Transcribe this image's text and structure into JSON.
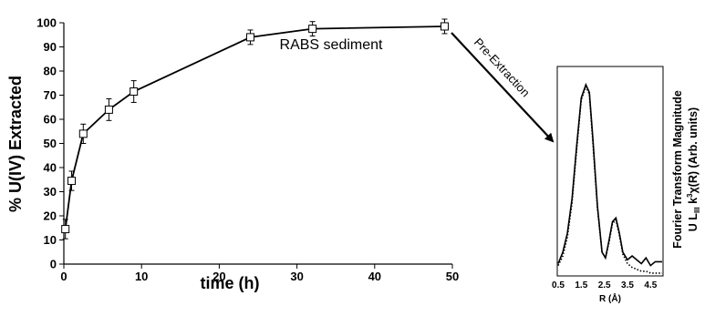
{
  "chart_data": [
    {
      "type": "line",
      "title": "",
      "xlabel": "time (h)",
      "ylabel": "% U(IV) Extracted",
      "xlim": [
        0,
        50
      ],
      "ylim": [
        0,
        100
      ],
      "xticks": [
        "0",
        "10",
        "20",
        "30",
        "40",
        "50"
      ],
      "yticks": [
        "0",
        "10",
        "20",
        "30",
        "40",
        "50",
        "60",
        "70",
        "80",
        "90",
        "100"
      ],
      "grid": false,
      "marker": "open-square",
      "series": [
        {
          "x": [
            0.2,
            1,
            2.5,
            5.8,
            9,
            24,
            32,
            49
          ],
          "y": [
            14.5,
            34.5,
            54,
            64,
            71.5,
            94,
            97.5,
            98.5
          ],
          "error": [
            4,
            4,
            4,
            4.5,
            4.5,
            3,
            3,
            3
          ]
        }
      ],
      "annotations": {
        "sample_label": "RABS sediment",
        "arrow_label": "Pre-Extraction"
      }
    },
    {
      "type": "line",
      "title": "",
      "xlabel": "R (Å)",
      "ylabel_line1": "Fourier Transform Magnitude",
      "ylabel_line2": "U L",
      "ylabel_line2_sub": "III",
      "ylabel_line2_rest": " k",
      "ylabel_line2_sup": "3",
      "ylabel_line2_end": "χ(R) (Arb. units)",
      "xlim": [
        0.5,
        5
      ],
      "xticks": [
        "0.5",
        "1.5",
        "2.5",
        "3.5",
        "4.5"
      ],
      "series": [
        {
          "style": "solid",
          "x": [
            0.5,
            0.7,
            0.9,
            1.1,
            1.3,
            1.5,
            1.7,
            1.85,
            2.0,
            2.2,
            2.4,
            2.55,
            2.7,
            2.85,
            3.0,
            3.15,
            3.3,
            3.5,
            3.7,
            3.9,
            4.1,
            4.3,
            4.5,
            4.7,
            4.9,
            5.0
          ],
          "y": [
            0.06,
            0.12,
            0.22,
            0.4,
            0.68,
            0.93,
            1.0,
            0.96,
            0.72,
            0.36,
            0.12,
            0.09,
            0.18,
            0.28,
            0.3,
            0.22,
            0.12,
            0.08,
            0.1,
            0.08,
            0.06,
            0.09,
            0.05,
            0.07,
            0.07,
            0.07
          ]
        },
        {
          "style": "dotted",
          "x": [
            0.5,
            0.7,
            0.9,
            1.1,
            1.3,
            1.5,
            1.7,
            1.85,
            2.0,
            2.2,
            2.4,
            2.55,
            2.7,
            2.85,
            3.0,
            3.15,
            3.3,
            3.5,
            3.7,
            3.9,
            4.1,
            4.3,
            4.5,
            4.7,
            4.9,
            5.0
          ],
          "y": [
            0.05,
            0.1,
            0.2,
            0.38,
            0.66,
            0.92,
            0.99,
            0.95,
            0.7,
            0.35,
            0.12,
            0.09,
            0.17,
            0.27,
            0.29,
            0.21,
            0.11,
            0.06,
            0.04,
            0.03,
            0.02,
            0.02,
            0.01,
            0.01,
            0.01,
            0.01
          ]
        }
      ]
    }
  ]
}
